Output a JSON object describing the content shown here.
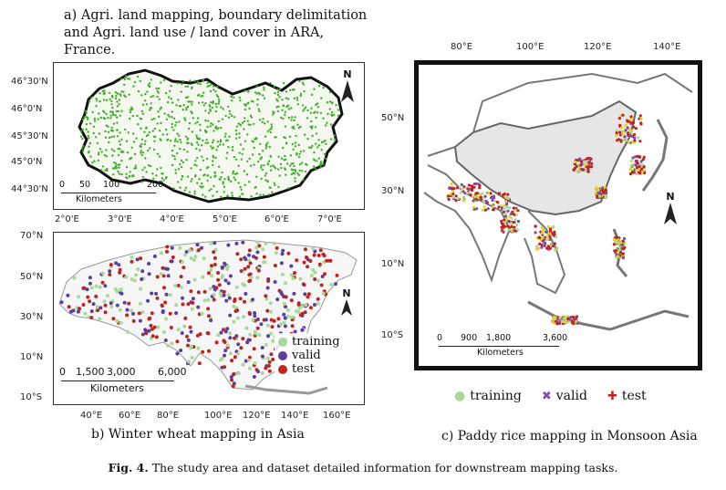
{
  "panel_a": {
    "title_line1": "a)   Agri. land mapping, boundary delimitation",
    "title_line2": "and Agri. land use / land cover in ARA, France.",
    "y_ticks": [
      "46°30'N",
      "46°0'N",
      "45°30'N",
      "45°0'N",
      "44°30'N"
    ],
    "x_ticks": [
      "2°0'E",
      "3°0'E",
      "4°0'E",
      "5°0'E",
      "6°0'E",
      "7°0'E"
    ],
    "scale_labels": [
      "0",
      "50",
      "100",
      "200"
    ],
    "scale_unit": "Kilometers",
    "north_label": "N",
    "point_color": "#3fae2a"
  },
  "panel_b": {
    "caption": "b) Winter wheat mapping in Asia",
    "y_ticks": [
      "70°N",
      "50°N",
      "30°N",
      "10°N",
      "10°S"
    ],
    "x_ticks": [
      "40°E",
      "60°E",
      "80°E",
      "100°E",
      "120°E",
      "140°E",
      "160°E"
    ],
    "scale_labels": [
      "0",
      "1,500",
      "3,000",
      "6,000"
    ],
    "scale_unit": "Kilometers",
    "north_label": "N",
    "legend": [
      {
        "label": "training",
        "color": "#a8d89a"
      },
      {
        "label": "valid",
        "color": "#5b3fa0"
      },
      {
        "label": "test",
        "color": "#c0241f"
      }
    ]
  },
  "panel_c": {
    "caption": "c) Paddy rice mapping in Monsoon Asia",
    "x_ticks": [
      "80°E",
      "100°E",
      "120°E",
      "140°E"
    ],
    "y_ticks": [
      "50°N",
      "30°N",
      "10°N",
      "10°S"
    ],
    "scale_labels": [
      "0",
      "900",
      "1,800",
      "3,600"
    ],
    "scale_unit": "Kilometers",
    "north_label": "N",
    "legend": [
      {
        "label": "training",
        "symbol": "●",
        "color": "#a8d89a"
      },
      {
        "label": "valid",
        "symbol": "✖",
        "color": "#7b4fb0"
      },
      {
        "label": "test",
        "symbol": "✚",
        "color": "#c0241f"
      }
    ]
  },
  "figure_caption": {
    "label": "Fig. 4.",
    "text": " The study area and dataset detailed information for downstream mapping tasks."
  }
}
